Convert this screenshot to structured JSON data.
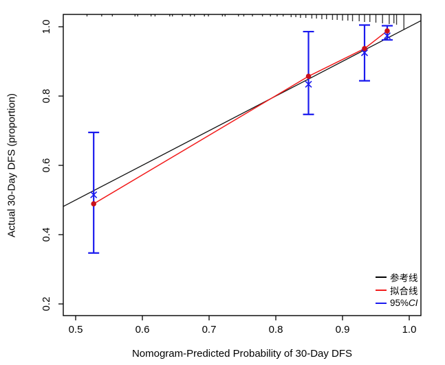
{
  "figure": {
    "x_axis_title": "Nomogram-Predicted Probability of 30-Day DFS",
    "y_axis_title": "Actual 30-Day DFS (proportion)",
    "background_color": "#ffffff",
    "frame_color": "#000000"
  },
  "legend": {
    "items": [
      {
        "label": "参考线",
        "color": "#000000"
      },
      {
        "label": "拟合线",
        "color": "#f21b1b"
      },
      {
        "label_prefix": "95%",
        "label_italic": "CI",
        "color": "#1a1aee"
      }
    ]
  },
  "chart_data": {
    "type": "line",
    "title": "",
    "xlabel": "Nomogram-Predicted Probability of 30-Day DFS",
    "ylabel": "Actual 30-Day DFS (proportion)",
    "xlim": [
      0.4814,
      1.0175
    ],
    "ylim": [
      0.164,
      1.0356
    ],
    "xticks": [
      0.5,
      0.6,
      0.7,
      0.8,
      0.9,
      1.0
    ],
    "yticks": [
      0.2,
      0.4,
      0.6,
      0.8,
      1.0
    ],
    "grid": false,
    "legend_position": "bottom-right",
    "colors": {
      "reference": "#111111",
      "fitted": "#f21b1b",
      "ci": "#1a1aee",
      "dot": "#c9101c",
      "rug": "#3a3a3a"
    },
    "series": [
      {
        "name": "参考线",
        "role": "reference-line",
        "points": [
          [
            0.4814,
            0.4814
          ],
          [
            1.0175,
            1.0175
          ]
        ]
      },
      {
        "name": "拟合线",
        "role": "fitted-line",
        "x": [
          0.527,
          0.849,
          0.933,
          0.967
        ],
        "y": [
          0.489,
          0.857,
          0.937,
          0.988
        ]
      },
      {
        "name": "observed-dots",
        "role": "scatter-dot",
        "x": [
          0.527,
          0.849,
          0.933,
          0.967
        ],
        "y": [
          0.489,
          0.857,
          0.937,
          0.988
        ]
      },
      {
        "name": "corrected-x-markers",
        "role": "scatter-x",
        "x": [
          0.527,
          0.849,
          0.933,
          0.967
        ],
        "y": [
          0.515,
          0.834,
          0.925,
          0.974
        ]
      },
      {
        "name": "95%CI",
        "role": "errorbar",
        "x": [
          0.527,
          0.849,
          0.933,
          0.967
        ],
        "low": [
          0.347,
          0.747,
          0.844,
          0.962
        ],
        "high": [
          0.695,
          0.986,
          1.005,
          1.003
        ]
      }
    ],
    "rug": {
      "x": [
        0.517,
        0.539,
        0.555,
        0.589,
        0.593,
        0.613,
        0.619,
        0.641,
        0.645,
        0.66,
        0.672,
        0.678,
        0.693,
        0.699,
        0.72,
        0.724,
        0.744,
        0.752,
        0.765,
        0.78,
        0.792,
        0.802,
        0.811,
        0.823,
        0.83,
        0.837,
        0.845,
        0.854,
        0.861,
        0.869,
        0.876,
        0.885,
        0.892,
        0.9,
        0.908,
        0.915,
        0.925,
        0.933,
        0.941,
        0.95,
        0.96,
        0.97,
        0.977,
        0.981,
        0.992
      ],
      "len": [
        3,
        3,
        3,
        3,
        3,
        3,
        3,
        3,
        3,
        3,
        3,
        3,
        3,
        3,
        3,
        3,
        3,
        3,
        3,
        3,
        3,
        3,
        3,
        4,
        4,
        5,
        5,
        6,
        6,
        7,
        7,
        8,
        8,
        9,
        9,
        10,
        10,
        11,
        11,
        12,
        13,
        14,
        13,
        15,
        22
      ]
    }
  }
}
